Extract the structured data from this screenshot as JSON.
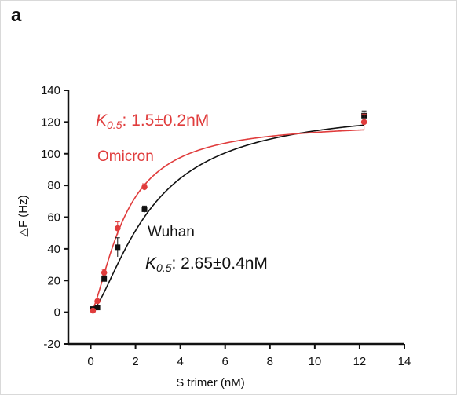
{
  "panel_label": "a",
  "chart_data": {
    "type": "scatter",
    "xlabel": "S trimer (nM)",
    "ylabel": "△F (Hz)",
    "xlim": [
      -1,
      14
    ],
    "ylim": [
      -20,
      140
    ],
    "x_ticks": [
      0,
      2,
      4,
      6,
      8,
      10,
      12,
      14
    ],
    "y_ticks": [
      -20,
      0,
      20,
      40,
      60,
      80,
      100,
      120,
      140
    ],
    "grid": false,
    "series": [
      {
        "name": "Omicron",
        "color": "#e03c3c",
        "marker": "circle",
        "x": [
          0.1,
          0.3,
          0.6,
          1.2,
          2.4,
          12.2
        ],
        "y": [
          1,
          7,
          25,
          53,
          79,
          120
        ],
        "error": [
          1,
          1,
          2,
          4,
          2,
          5
        ],
        "fit_kd": 1.5,
        "fit_max": 120,
        "fit_n": 1.5
      },
      {
        "name": "Wuhan",
        "color": "#111111",
        "marker": "square",
        "x": [
          0.1,
          0.3,
          0.6,
          1.2,
          2.4,
          12.2
        ],
        "y": [
          2,
          3,
          21,
          41,
          65,
          124
        ],
        "error": [
          1,
          1,
          2,
          6,
          2,
          3
        ],
        "fit_kd": 2.65,
        "fit_max": 130,
        "fit_n": 1.5
      }
    ],
    "annotations": {
      "omicron_k_symbol": "K",
      "omicron_k_sub": "0.5",
      "omicron_k_value": ": 1.5±0.2nM",
      "omicron_label": "Omicron",
      "wuhan_label": "Wuhan",
      "wuhan_k_symbol": "K",
      "wuhan_k_sub": "0.5",
      "wuhan_k_value": ": 2.65±0.4nM"
    }
  }
}
